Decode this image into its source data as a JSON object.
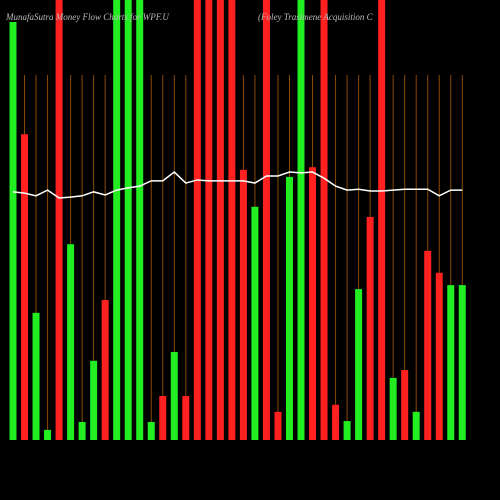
{
  "chart_data": {
    "type": "bar",
    "title": "MunafaSutra  Money Flow  Charts for WPF.U",
    "subtitle": "(Foley Trasimene  Acquisition  C",
    "ylim": [
      0,
      100
    ],
    "bars": {
      "values": [
        95,
        69.5,
        28.9,
        2.3,
        100,
        44.5,
        4.1,
        18,
        31.8,
        100,
        100,
        100,
        4.1,
        10,
        20,
        10,
        100,
        100,
        100,
        100,
        61.4,
        53,
        100,
        6.4,
        59.8,
        100,
        62,
        100,
        8,
        4.3,
        34.3,
        50.7,
        100,
        14.1,
        15.9,
        6.4,
        43,
        38,
        35.2,
        35.2
      ],
      "colors": [
        "#22ee22",
        "#ff2020",
        "#22ee22",
        "#22ee22",
        "#ff2020",
        "#22ee22",
        "#22ee22",
        "#22ee22",
        "#ff2020",
        "#22ee22",
        "#22ee22",
        "#22ee22",
        "#22ee22",
        "#ff2020",
        "#22ee22",
        "#ff2020",
        "#ff2020",
        "#ff2020",
        "#ff2020",
        "#ff2020",
        "#ff2020",
        "#22ee22",
        "#ff2020",
        "#ff2020",
        "#22ee22",
        "#22ee22",
        "#ff2020",
        "#ff2020",
        "#ff2020",
        "#22ee22",
        "#22ee22",
        "#ff2020",
        "#ff2020",
        "#22ee22",
        "#ff2020",
        "#22ee22",
        "#ff2020",
        "#ff2020",
        "#22ee22",
        "#22ee22"
      ]
    },
    "line": {
      "color": "#ffffff",
      "values": [
        56.4,
        56.1,
        55.5,
        56.8,
        55.0,
        55.2,
        55.5,
        56.4,
        55.7,
        56.8,
        57.3,
        57.7,
        58.9,
        58.9,
        60.9,
        58.4,
        59.1,
        58.9,
        58.9,
        58.9,
        58.9,
        58.4,
        60.0,
        60.0,
        60.9,
        60.7,
        60.9,
        59.5,
        57.7,
        56.8,
        57.0,
        56.6,
        56.6,
        56.8,
        57.0,
        57.0,
        57.0,
        55.5,
        56.8,
        56.8
      ]
    },
    "grid": true,
    "grid_color": "#8a4a00"
  }
}
